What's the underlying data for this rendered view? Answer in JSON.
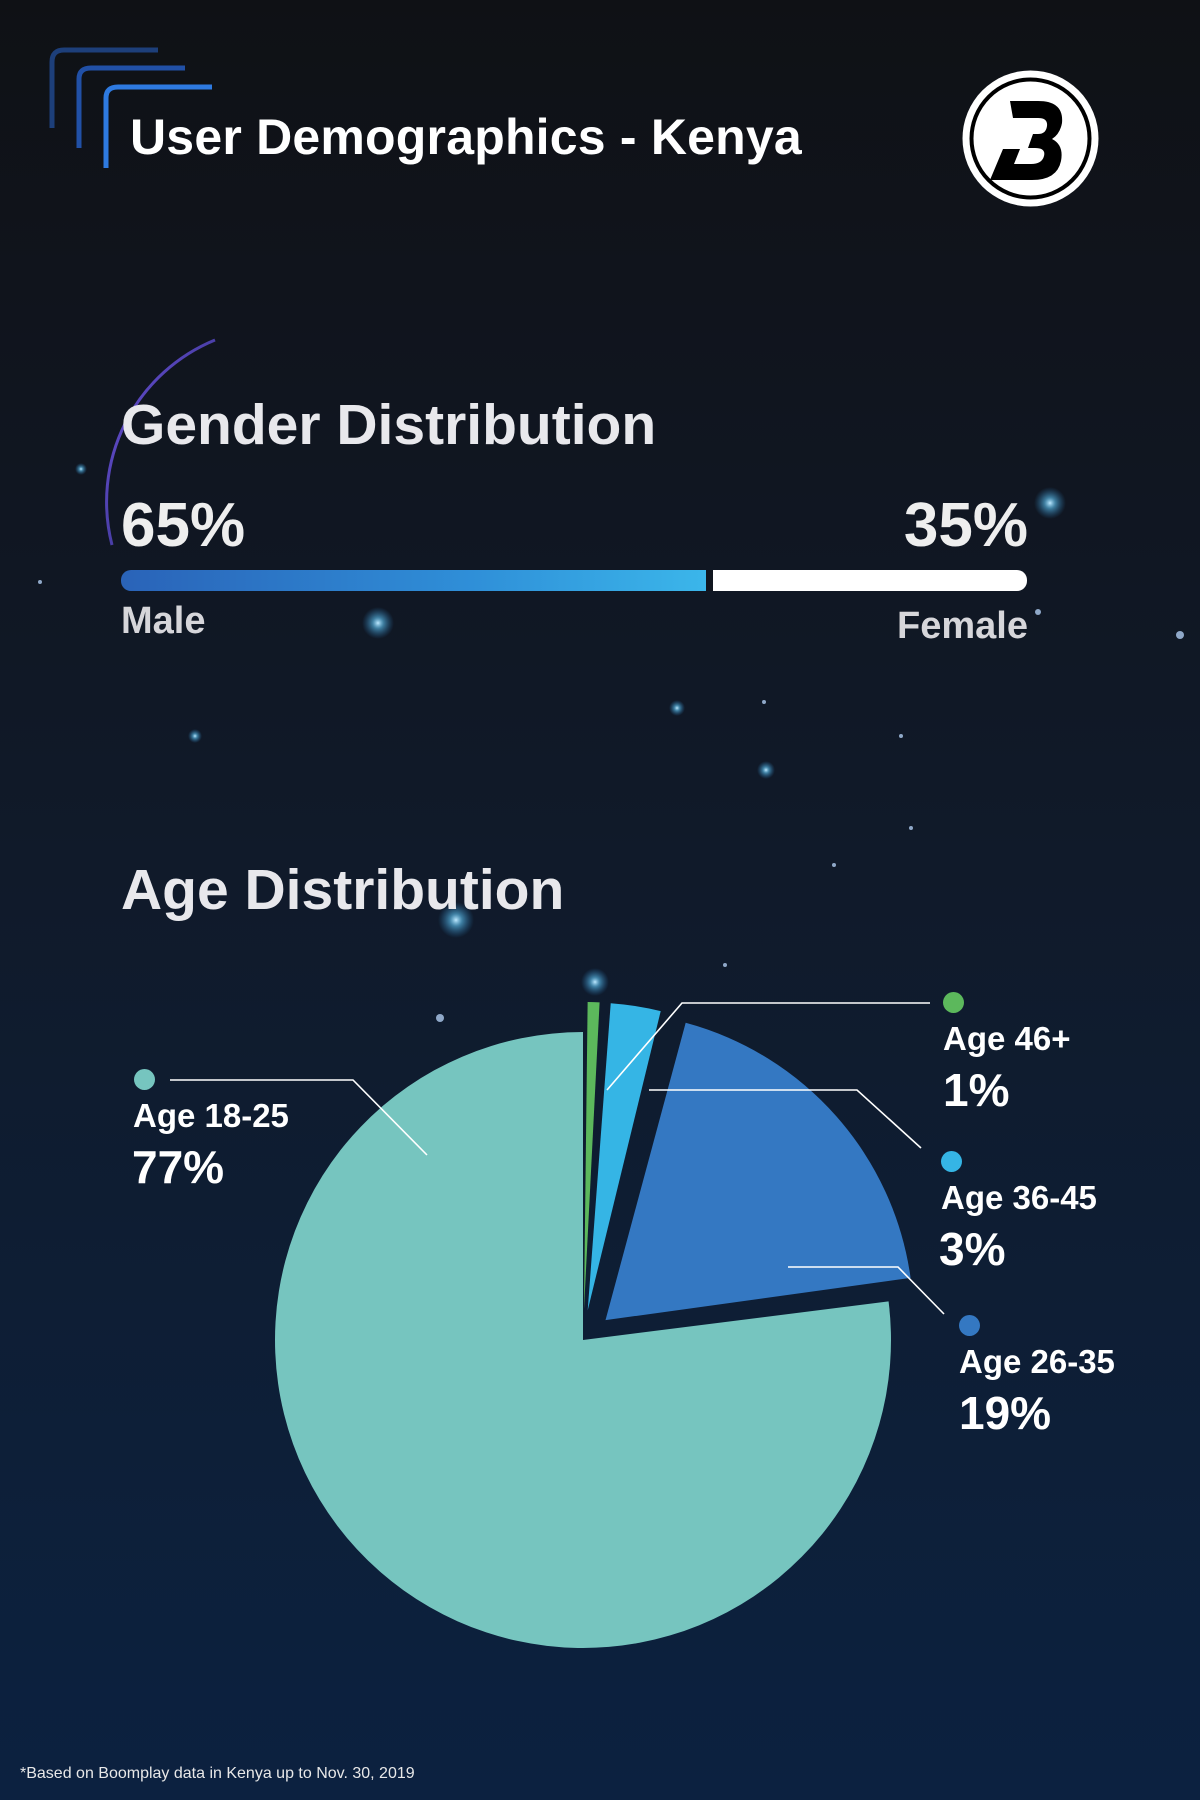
{
  "header": {
    "title": "User Demographics - Kenya",
    "logo_icon": "boomplay-b-logo-icon"
  },
  "gender": {
    "title": "Gender Distribution",
    "male_pct": "65%",
    "female_pct": "35%",
    "male_label": "Male",
    "female_label": "Female",
    "male_share": 0.65,
    "male_color": "#2f8fd8",
    "female_color": "#ffffff"
  },
  "age": {
    "title": "Age Distribution",
    "items": [
      {
        "label": "Age 18-25",
        "value": "77%",
        "color": "#76c5bf"
      },
      {
        "label": "Age 46+",
        "value": "1%",
        "color": "#5cb85c"
      },
      {
        "label": "Age 36-45",
        "value": "3%",
        "color": "#35b5e5"
      },
      {
        "label": "Age 26-35",
        "value": "19%",
        "color": "#3478c2"
      }
    ]
  },
  "chart_data": [
    {
      "type": "bar",
      "title": "Gender Distribution",
      "categories": [
        "Male",
        "Female"
      ],
      "values": [
        65,
        35
      ],
      "stacked": true,
      "orientation": "horizontal"
    },
    {
      "type": "pie",
      "title": "Age Distribution",
      "categories": [
        "Age 18-25",
        "Age 46+",
        "Age 36-45",
        "Age 26-35"
      ],
      "values": [
        77,
        1,
        3,
        19
      ],
      "colors": [
        "#76c5bf",
        "#5cb85c",
        "#35b5e5",
        "#3478c2"
      ]
    }
  ],
  "footnote": "*Based on Boomplay data in Kenya up to Nov. 30, 2019"
}
